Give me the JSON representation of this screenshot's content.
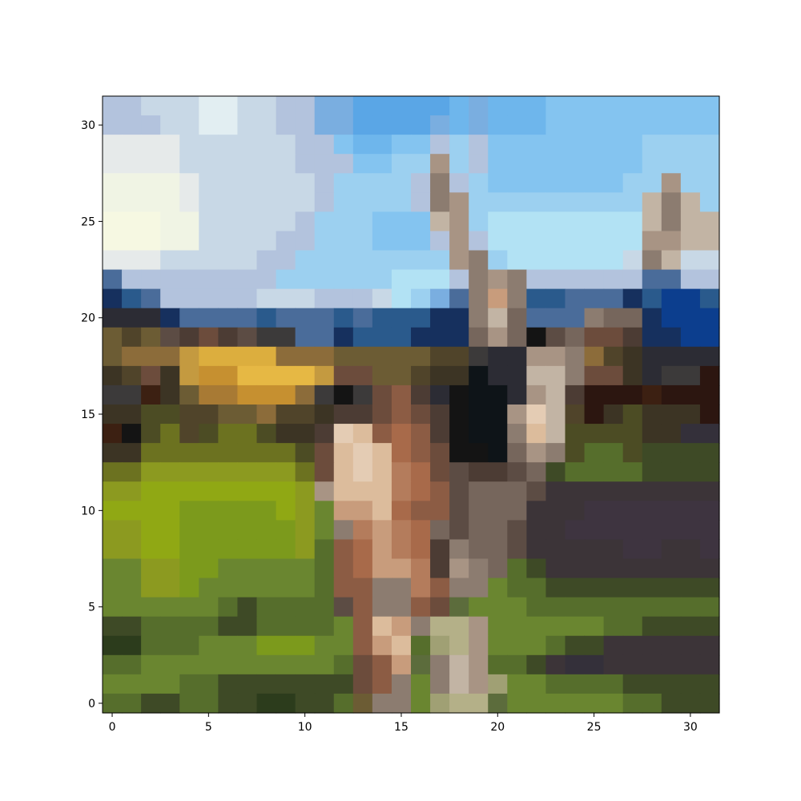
{
  "chart_data": {
    "type": "heatmap",
    "grid_size": [
      32,
      32
    ],
    "xlim": [
      -0.5,
      31.5
    ],
    "ylim": [
      31.5,
      -0.5
    ],
    "x_ticks": [
      0,
      5,
      10,
      15,
      20,
      25,
      30
    ],
    "y_ticks": [
      0,
      5,
      10,
      15,
      20,
      25,
      30
    ],
    "x_tick_labels": [
      "0",
      "5",
      "10",
      "15",
      "20",
      "25",
      "30"
    ],
    "y_tick_labels": [
      "0",
      "5",
      "10",
      "15",
      "20",
      "25",
      "30"
    ],
    "grid": false,
    "content": "pixelated photo of a brown and white horse in a sunny field with green grass, yellow hay and blue sky",
    "palette": {
      "S1": "#b3c3dd",
      "S2": "#c8d8e6",
      "S3": "#e2eef2",
      "S4": "#7aaee0",
      "S5": "#5aa6e6",
      "S6": "#6eb6ec",
      "S7": "#84c4f0",
      "S8": "#9cd0f0",
      "S9": "#b2e2f4",
      "W1": "#e6eaea",
      "W2": "#f0f4e4",
      "W3": "#f6f8e2",
      "B1": "#16305e",
      "B2": "#2a5a8c",
      "B3": "#0c3e8e",
      "B4": "#4a6c9a",
      "D1": "#2c2c34",
      "D2": "#3c3a3a",
      "D3": "#141414",
      "D4": "#0e1418",
      "R1": "#2c1610",
      "R2": "#3c2012",
      "K1": "#3c3424",
      "K2": "#50442a",
      "K3": "#6c5c34",
      "Y1": "#c49a40",
      "Y2": "#dcae3e",
      "Y3": "#e6b844",
      "Y4": "#c69030",
      "Y5": "#a87a34",
      "Y6": "#8c6c3a",
      "G1": "#4c4c24",
      "G2": "#6c7220",
      "G3": "#8c9a20",
      "G4": "#90a814",
      "G5": "#7c9a1c",
      "G6": "#6a8630",
      "G7": "#566e2c",
      "G8": "#3e4a26",
      "G9": "#2c3c1c",
      "H1": "#e4ccb4",
      "H2": "#dcbc9c",
      "H3": "#c89c7c",
      "H4": "#b47c5c",
      "H5": "#a86a4a",
      "H6": "#8c5c44",
      "H7": "#6c4c3c",
      "H8": "#4c3c34",
      "T1": "#c2b4a4",
      "T2": "#a89484",
      "T3": "#8c7c70",
      "T4": "#76665c",
      "T5": "#5c4c44",
      "P1": "#3c3438",
      "P2": "#34303a",
      "P3": "#3e3440",
      "F1": "#b4b088",
      "F2": "#a0a074",
      "F3": "#5c6c3c"
    },
    "rows": [
      "S1 S1 S2 S2 S2 S3 S3 S2 S2 S1 S1 S4 S4 S5 S5 S5 S5 S5 S6 S4 S6 S6 S6 S7 S7 S7 S7 S7 S7 S7 S7 S7",
      "S1 S1 S1 S2 S2 S3 S3 S2 S2 S1 S1 S4 S4 S5 S5 S5 S5 S4 S6 S4 S6 S6 S6 S7 S7 S7 S7 S7 S7 S7 S7 S7",
      "W1 W1 W1 W1 S2 S2 S2 S2 S2 S2 S1 S1 S7 S6 S6 S7 S7 S1 S8 S1 S7 S7 S7 S7 S7 S7 S7 S7 S8 S8 S8 S8",
      "W1 W1 W1 W1 S2 S2 S2 S2 S2 S2 S1 S1 S1 S7 S7 S8 S8 T2 S8 S1 S7 S7 S7 S7 S7 S7 S7 S7 S8 S8 S8 S8",
      "W2 W2 W2 W2 W1 S2 S2 S2 S2 S2 S2 S1 S8 S8 S8 S8 S1 T3 S1 S8 S7 S7 S7 S7 S7 S7 S7 S8 S8 T2 S8 S8",
      "W2 W2 W2 W2 W1 S2 S2 S2 S2 S2 S2 S1 S8 S8 S8 S8 S1 T3 T2 S8 S8 S8 S8 S8 S8 S8 S8 S8 T1 T3 T1 S8",
      "W3 W3 W3 W2 W2 S2 S2 S2 S2 S2 S1 S8 S8 S8 S7 S7 S7 T1 T2 S8 S9 S9 S9 S9 S9 S9 S9 S9 T1 T3 T1 T1",
      "W3 W3 W3 W2 W2 S2 S2 S2 S2 S1 S1 S8 S8 S8 S7 S7 S7 S1 T2 S1 S9 S9 S9 S9 S9 S9 S9 S9 T2 T2 T1 T1",
      "W1 W1 W1 S2 S2 S2 S2 S2 S1 S1 S8 S8 S8 S8 S8 S8 S8 S8 T2 T3 S8 S9 S9 S9 S9 S9 S9 S2 T3 T1 S2 S2",
      "B4 S1 S1 S1 S1 S1 S1 S1 S1 S8 S8 S8 S8 S8 S8 S9 S9 S9 S1 T3 T2 T3 S1 S1 S1 S1 S1 S1 B4 B4 S1 S1",
      "B1 B2 B4 S1 S1 S1 S1 S1 S2 S2 S2 S1 S1 S1 S2 S9 S8 S4 B4 T3 H3 T3 B2 B2 B4 B4 B4 B1 B2 B3 B3 B2",
      "D1 D1 D1 B1 B4 B4 B4 B4 B2 B4 B4 B4 B2 B4 B2 B2 B2 B1 B1 T3 T1 T4 B4 B4 B4 T3 T4 T4 B1 B3 B3 B3",
      "K3 K2 K3 T5 H8 H7 H8 T5 D2 D2 B4 B4 B1 B2 B2 B2 B1 B1 B1 T4 T2 T4 D3 T5 T4 H7 H7 H8 B1 B1 B3 B3",
      "K3 Y6 Y6 Y6 Y1 Y2 Y2 Y2 Y2 Y6 Y6 Y6 K3 K3 K3 K3 K3 K2 K2 D2 D1 D1 T2 T2 T3 Y6 K2 K1 D1 D1 D1 D1",
      "K1 K2 H7 K1 Y1 Y4 Y4 Y3 Y3 Y3 Y3 Y1 H7 H7 K3 K3 K2 K1 K1 D4 D1 D1 T1 T1 T3 H7 H7 K1 D1 D2 D2 R1",
      "D2 D2 R2 K1 K3 Y5 Y5 Y4 Y4 Y4 Y6 D2 D3 D2 H7 H6 H8 D1 D3 D4 D4 D1 T2 T1 H8 R1 R1 R1 R2 R1 R1 R1",
      "K1 K1 G1 G1 K2 K2 K3 K3 Y6 K2 K2 K1 H8 H8 H7 H6 H7 H8 D3 D4 D4 T2 H1 T1 K2 R1 K1 G1 K1 K1 K1 R1",
      "R2 D3 G1 G2 K2 G1 G2 G2 G1 K1 K1 H8 H1 H2 H6 H5 H6 H8 D3 D4 D4 T3 H2 T1 G1 G1 G1 G1 K1 K1 P2 P2",
      "K1 K1 G2 G2 G2 G2 G2 G2 G2 G2 G1 H7 H2 H1 H2 H5 H6 H7 D3 D3 D4 T4 T2 T3 G1 G7 G7 G1 G8 G8 G8 G8",
      "G2 G2 G3 G3 G3 G3 G3 G3 G3 G3 G2 H7 H2 H1 H2 H4 H5 H7 T5 H8 H8 T5 T4 G8 G7 G7 G7 G7 G8 G8 G8 G8",
      "G3 G3 G4 G4 G4 G4 G4 G4 G4 G4 G3 T2 H2 H2 H2 H4 H5 H6 T5 T4 T4 T4 T5 P1 P1 P1 P1 P1 P1 P1 P1 P1",
      "G4 G4 G4 G4 G5 G5 G5 G5 G5 G4 G3 G6 H3 H3 H2 H5 H6 H6 T5 T4 T4 T4 P1 P1 P1 P3 P3 P3 P3 P3 P3 P3",
      "G3 G3 G4 G4 G5 G5 G5 G5 G5 G5 G3 G6 T3 H4 H3 H4 H5 T4 T5 T4 T4 T5 P1 P1 P3 P3 P3 P3 P3 P3 P3 P3",
      "G3 G3 G4 G4 G5 G5 G5 G5 G5 G5 G3 G7 H6 H5 H3 H4 H5 H8 T3 T4 T4 T5 P1 P1 P1 P1 P1 P3 P3 P1 P1 P3",
      "G6 G6 G3 G3 G5 G5 G6 G6 G6 G6 G6 G7 H6 H5 H3 H3 H4 H8 T2 T3 T4 G7 G8 P1 P1 P1 P1 P1 P1 P1 P1 P1",
      "G6 G6 G3 G3 G5 G6 G6 G6 G6 G6 G6 G7 H6 H6 T3 T3 H4 H6 T3 T3 G6 G7 G7 G8 G8 G8 G8 G8 G8 G8 G8 G8",
      "G6 G6 G6 G6 G6 G6 G7 G8 G7 G7 G7 G7 T5 H6 T3 T3 H6 H7 F3 G6 G6 G6 G7 G7 G7 G7 G7 G7 G7 G7 G7 G7",
      "G8 G8 G7 G7 G7 G7 G8 G8 G7 G7 G7 G7 G6 H6 H2 H3 T3 F1 F1 T2 G6 G6 G6 G6 G6 G6 G7 G7 G8 G8 G8 G8",
      "G9 G9 G7 G7 G7 G6 G6 G6 G5 G5 G5 G6 G6 H6 H3 H2 G7 F2 F1 T2 G6 G6 G6 G7 G8 G8 P1 P1 P1 P1 P1 P1",
      "G7 G7 G6 G6 G6 G6 G6 G6 G6 G6 G6 G6 G7 H7 H6 H3 F3 T3 T1 T2 G7 G7 G8 P1 P2 P2 P1 P1 P1 P1 P1 P1",
      "G6 G6 G6 G6 G7 G7 G8 G8 G8 G8 G8 G8 G8 H7 H6 T3 G6 T3 T1 T2 F2 G6 G6 G7 G7 G7 G7 G8 G8 G8 G8 G8",
      "G7 G7 G8 G8 G7 G7 G8 G8 G9 G9 G8 G8 G7 K3 T3 T3 G6 F2 F1 F1 F3 G6 G6 G6 G6 G6 G6 G7 G7 G8 G8 G8"
    ]
  }
}
